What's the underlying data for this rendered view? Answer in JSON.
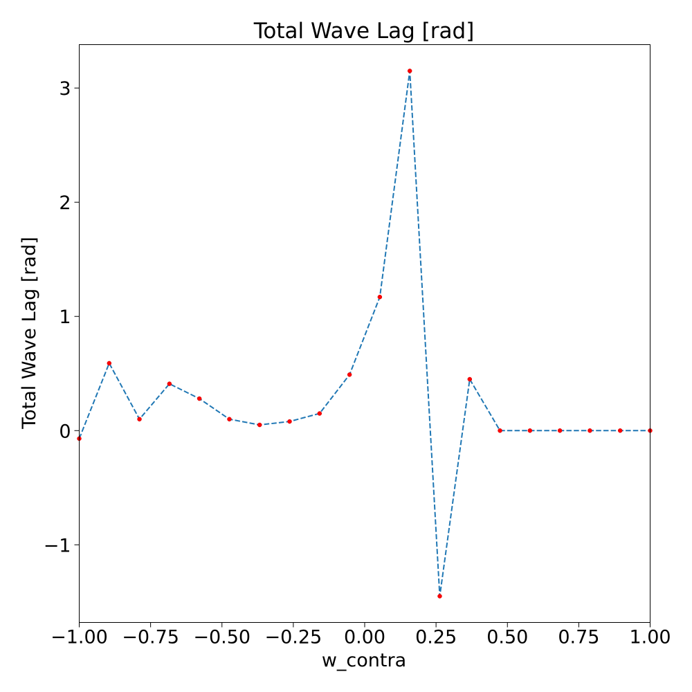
{
  "chart_data": {
    "type": "line",
    "title": "Total Wave Lag [rad]",
    "xlabel": "w_contra",
    "ylabel": "Total Wave Lag [rad]",
    "xlim": [
      -1.0,
      1.0
    ],
    "ylim": [
      -1.68,
      3.38
    ],
    "x_ticks": [
      -1.0,
      -0.75,
      -0.5,
      -0.25,
      0.0,
      0.25,
      0.5,
      0.75,
      1.0
    ],
    "x_tick_labels": [
      "−1.00",
      "−0.75",
      "−0.50",
      "−0.25",
      "0.00",
      "0.25",
      "0.50",
      "0.75",
      "1.00"
    ],
    "y_ticks": [
      -1,
      0,
      1,
      2,
      3
    ],
    "y_tick_labels": [
      "−1",
      "0",
      "1",
      "2",
      "3"
    ],
    "grid": false,
    "series": [
      {
        "line_color": "#1f77b4",
        "line_style": "dashed",
        "marker_color": "#ff0000",
        "x": [
          -1.0,
          -0.895,
          -0.789,
          -0.684,
          -0.579,
          -0.474,
          -0.368,
          -0.263,
          -0.158,
          -0.053,
          0.053,
          0.158,
          0.263,
          0.368,
          0.474,
          0.579,
          0.684,
          0.789,
          0.895,
          1.0
        ],
        "y": [
          -0.07,
          0.59,
          0.1,
          0.41,
          0.28,
          0.1,
          0.05,
          0.08,
          0.15,
          0.49,
          1.17,
          3.15,
          -1.45,
          0.45,
          0.0,
          0.0,
          0.0,
          0.0,
          0.0,
          0.0
        ]
      }
    ]
  }
}
